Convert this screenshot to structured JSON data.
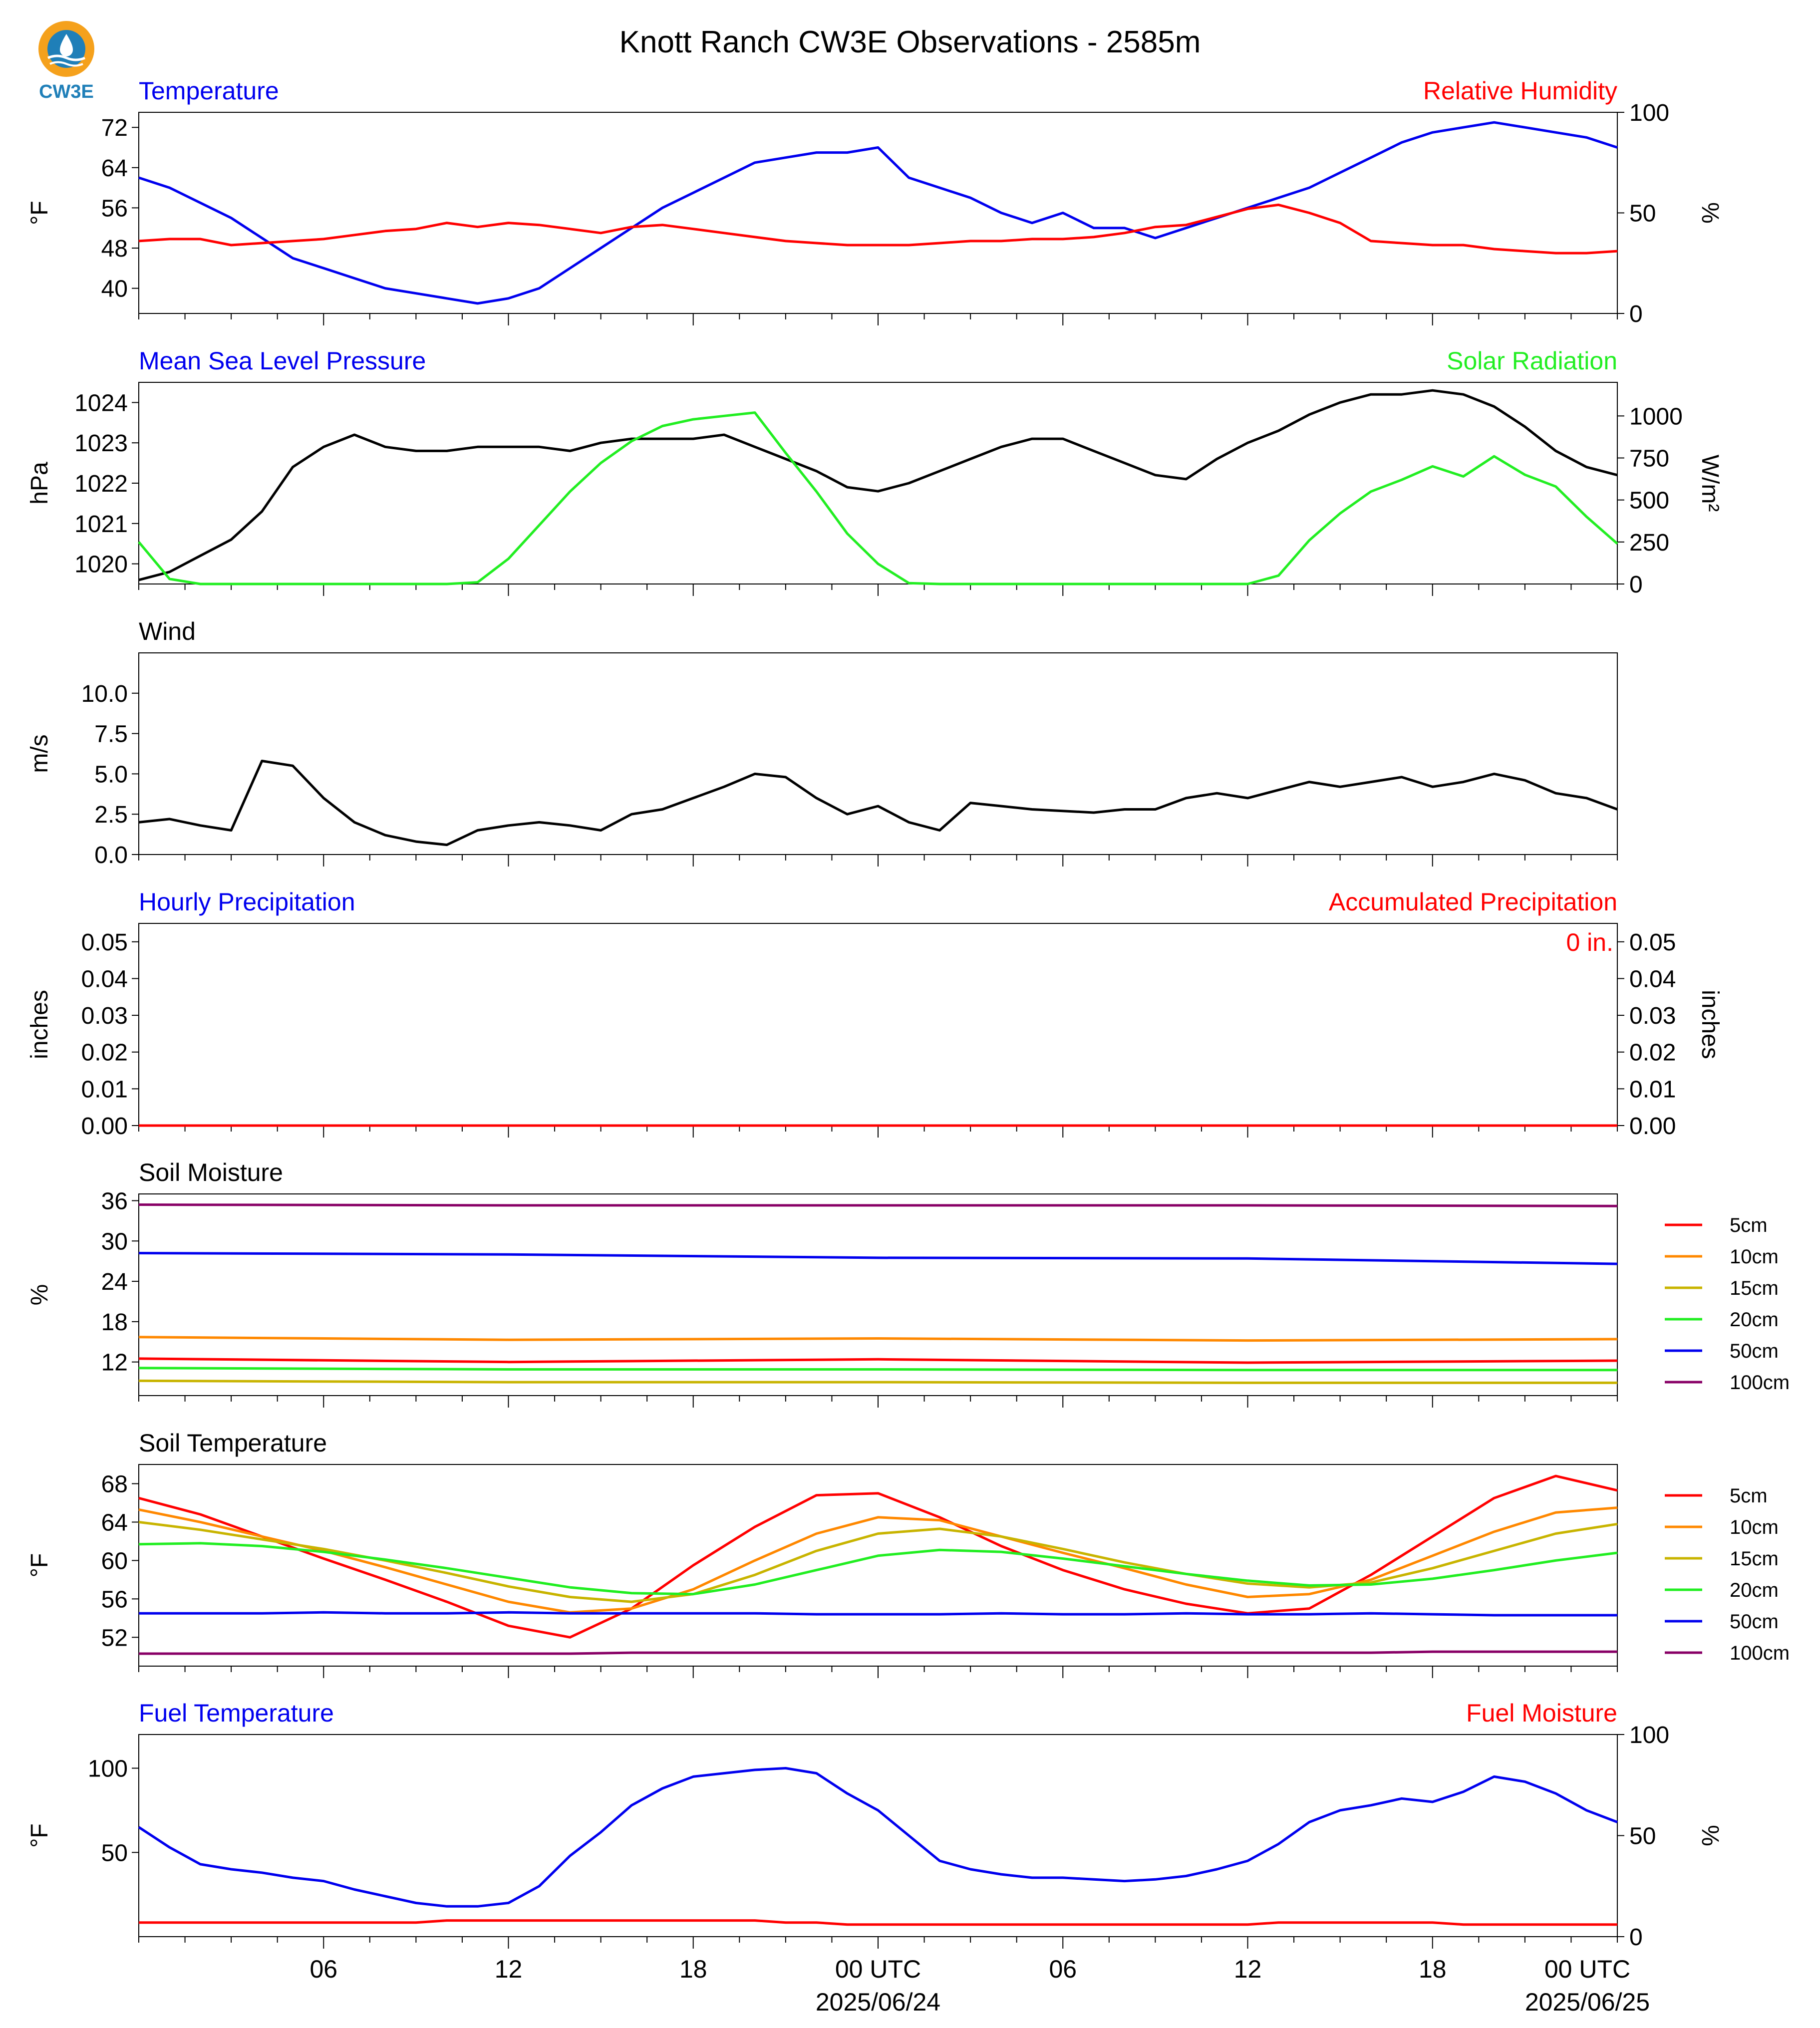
{
  "title": "Knott Ranch CW3E Observations - 2585m",
  "logo_text": "CW3E",
  "x_axis": {
    "tick_labels": [
      "06",
      "12",
      "18",
      "00 UTC",
      "06",
      "12",
      "18",
      "00 UTC"
    ],
    "date_labels": [
      "2025/06/24",
      "2025/06/25"
    ]
  },
  "colors": {
    "blue": "#0000ee",
    "red": "#ff0000",
    "green": "#22ee22",
    "black": "#000000",
    "orange": "#ff8800",
    "olive": "#c8b400",
    "purple": "#880066"
  },
  "chart_data": [
    {
      "type": "line",
      "left_title": "Temperature",
      "right_title": "Relative Humidity",
      "left_axis": {
        "label": "°F",
        "ticks": [
          "72",
          "64",
          "56",
          "48",
          "40"
        ],
        "range": [
          35,
          75
        ]
      },
      "right_axis": {
        "label": "%",
        "ticks": [
          "100",
          "50",
          "0"
        ],
        "range": [
          0,
          100
        ]
      },
      "x_hours": [
        0,
        1,
        2,
        3,
        4,
        5,
        6,
        7,
        8,
        9,
        10,
        11,
        12,
        13,
        14,
        15,
        16,
        17,
        18,
        19,
        20,
        21,
        22,
        23,
        24,
        25,
        26,
        27,
        28,
        29,
        30,
        31,
        32,
        33,
        34,
        35,
        36,
        37,
        38,
        39,
        40,
        41,
        42,
        43,
        44,
        45,
        46,
        47,
        48
      ],
      "series": [
        {
          "name": "Temperature",
          "axis": "left",
          "color": "blue",
          "values": [
            62,
            60,
            57,
            54,
            50,
            46,
            44,
            42,
            40,
            39,
            38,
            37,
            38,
            40,
            44,
            48,
            52,
            56,
            59,
            62,
            65,
            66,
            67,
            67,
            68,
            62,
            60,
            58,
            55,
            53,
            55,
            52,
            52,
            50,
            52,
            54,
            56,
            58,
            60,
            63,
            66,
            69,
            71,
            72,
            73,
            72,
            71,
            70,
            68
          ]
        },
        {
          "name": "Relative Humidity",
          "axis": "right",
          "color": "red",
          "values": [
            36,
            37,
            37,
            34,
            35,
            36,
            37,
            39,
            41,
            42,
            45,
            43,
            45,
            44,
            42,
            40,
            43,
            44,
            42,
            40,
            38,
            36,
            35,
            34,
            34,
            34,
            35,
            36,
            36,
            37,
            37,
            38,
            40,
            43,
            44,
            48,
            52,
            54,
            50,
            45,
            36,
            35,
            34,
            34,
            32,
            31,
            30,
            30,
            31
          ]
        }
      ]
    },
    {
      "type": "line",
      "left_title": "Mean Sea Level Pressure",
      "right_title": "Solar Radiation",
      "left_axis": {
        "label": "hPa",
        "ticks": [
          "1024",
          "1023",
          "1022",
          "1021",
          "1020"
        ],
        "range": [
          1019.5,
          1024.5
        ]
      },
      "right_axis": {
        "label": "W/m²",
        "ticks": [
          "1000",
          "750",
          "500",
          "250",
          "0"
        ],
        "range": [
          0,
          1200
        ]
      },
      "x_hours": [
        0,
        1,
        2,
        3,
        4,
        5,
        6,
        7,
        8,
        9,
        10,
        11,
        12,
        13,
        14,
        15,
        16,
        17,
        18,
        19,
        20,
        21,
        22,
        23,
        24,
        25,
        26,
        27,
        28,
        29,
        30,
        31,
        32,
        33,
        34,
        35,
        36,
        37,
        38,
        39,
        40,
        41,
        42,
        43,
        44,
        45,
        46,
        47,
        48
      ],
      "series": [
        {
          "name": "Mean Sea Level Pressure",
          "axis": "left",
          "color": "black",
          "values": [
            1019.6,
            1019.8,
            1020.2,
            1020.6,
            1021.3,
            1022.4,
            1022.9,
            1023.2,
            1022.9,
            1022.8,
            1022.8,
            1022.9,
            1022.9,
            1022.9,
            1022.8,
            1023.0,
            1023.1,
            1023.1,
            1023.1,
            1023.2,
            1022.9,
            1022.6,
            1022.3,
            1021.9,
            1021.8,
            1022.0,
            1022.3,
            1022.6,
            1022.9,
            1023.1,
            1023.1,
            1022.8,
            1022.5,
            1022.2,
            1022.1,
            1022.6,
            1023.0,
            1023.3,
            1023.7,
            1024.0,
            1024.2,
            1024.2,
            1024.3,
            1024.2,
            1023.9,
            1023.4,
            1022.8,
            1022.4,
            1022.2
          ]
        },
        {
          "name": "Solar Radiation",
          "axis": "right",
          "color": "green",
          "values": [
            250,
            30,
            0,
            0,
            0,
            0,
            0,
            0,
            0,
            0,
            0,
            10,
            150,
            350,
            550,
            720,
            850,
            940,
            980,
            1000,
            1020,
            780,
            550,
            300,
            120,
            5,
            0,
            0,
            0,
            0,
            0,
            0,
            0,
            0,
            0,
            0,
            0,
            50,
            260,
            420,
            550,
            620,
            700,
            640,
            760,
            650,
            580,
            400,
            240
          ]
        }
      ]
    },
    {
      "type": "line",
      "left_title": "Wind",
      "left_axis": {
        "label": "m/s",
        "ticks": [
          "10.0",
          "7.5",
          "5.0",
          "2.5",
          "0.0"
        ],
        "range": [
          0,
          12.5
        ]
      },
      "x_hours": [
        0,
        1,
        2,
        3,
        4,
        5,
        6,
        7,
        8,
        9,
        10,
        11,
        12,
        13,
        14,
        15,
        16,
        17,
        18,
        19,
        20,
        21,
        22,
        23,
        24,
        25,
        26,
        27,
        28,
        29,
        30,
        31,
        32,
        33,
        34,
        35,
        36,
        37,
        38,
        39,
        40,
        41,
        42,
        43,
        44,
        45,
        46,
        47,
        48
      ],
      "series": [
        {
          "name": "Wind",
          "axis": "left",
          "color": "black",
          "values": [
            2.0,
            2.2,
            1.8,
            1.5,
            5.8,
            5.5,
            3.5,
            2.0,
            1.2,
            0.8,
            0.6,
            1.5,
            1.8,
            2.0,
            1.8,
            1.5,
            2.5,
            2.8,
            3.5,
            4.2,
            5.0,
            4.8,
            3.5,
            2.5,
            3.0,
            2.0,
            1.5,
            3.2,
            3.0,
            2.8,
            2.7,
            2.6,
            2.8,
            2.8,
            3.5,
            3.8,
            3.5,
            4.0,
            4.5,
            4.2,
            4.5,
            4.8,
            4.2,
            4.5,
            5.0,
            4.6,
            3.8,
            3.5,
            2.8
          ]
        }
      ]
    },
    {
      "type": "line",
      "left_title": "Hourly Precipitation",
      "right_title": "Accumulated Precipitation",
      "annotation": "0 in.",
      "left_axis": {
        "label": "inches",
        "ticks": [
          "0.05",
          "0.04",
          "0.03",
          "0.02",
          "0.01",
          "0.00"
        ],
        "range": [
          0,
          0.055
        ]
      },
      "right_axis": {
        "label": "inches",
        "ticks": [
          "0.05",
          "0.04",
          "0.03",
          "0.02",
          "0.01",
          "0.00"
        ],
        "range": [
          0,
          0.055
        ]
      },
      "x_hours": [
        0,
        48
      ],
      "series": [
        {
          "name": "Hourly Precipitation",
          "axis": "left",
          "color": "blue",
          "values": [
            0,
            0
          ]
        },
        {
          "name": "Accumulated Precipitation",
          "axis": "right",
          "color": "red",
          "values": [
            0,
            0
          ]
        }
      ]
    },
    {
      "type": "line",
      "left_title": "Soil Moisture",
      "left_axis": {
        "label": "%",
        "ticks": [
          "36",
          "30",
          "24",
          "18",
          "12"
        ],
        "range": [
          7,
          37
        ]
      },
      "legend": {
        "placement": "right",
        "entries": [
          "5cm",
          "10cm",
          "15cm",
          "20cm",
          "50cm",
          "100cm"
        ]
      },
      "x_hours": [
        0,
        12,
        24,
        36,
        48
      ],
      "series": [
        {
          "name": "5cm",
          "axis": "left",
          "color": "red",
          "values": [
            12.5,
            12.0,
            12.4,
            11.9,
            12.2
          ]
        },
        {
          "name": "10cm",
          "axis": "left",
          "color": "orange",
          "values": [
            15.7,
            15.3,
            15.5,
            15.2,
            15.4
          ]
        },
        {
          "name": "15cm",
          "axis": "left",
          "color": "olive",
          "values": [
            9.2,
            9.0,
            9.0,
            8.9,
            8.9
          ]
        },
        {
          "name": "20cm",
          "axis": "left",
          "color": "green",
          "values": [
            11.1,
            10.9,
            10.9,
            10.8,
            10.8
          ]
        },
        {
          "name": "50cm",
          "axis": "left",
          "color": "blue",
          "values": [
            28.2,
            28.0,
            27.5,
            27.4,
            26.6
          ]
        },
        {
          "name": "100cm",
          "axis": "left",
          "color": "purple",
          "values": [
            35.4,
            35.3,
            35.3,
            35.3,
            35.2
          ]
        }
      ]
    },
    {
      "type": "line",
      "left_title": "Soil Temperature",
      "left_axis": {
        "label": "°F",
        "ticks": [
          "68",
          "64",
          "60",
          "56",
          "52"
        ],
        "range": [
          49,
          70
        ]
      },
      "legend": {
        "placement": "right",
        "entries": [
          "5cm",
          "10cm",
          "15cm",
          "20cm",
          "50cm",
          "100cm"
        ]
      },
      "x_hours": [
        0,
        2,
        4,
        6,
        8,
        10,
        12,
        14,
        16,
        18,
        20,
        22,
        24,
        26,
        28,
        30,
        32,
        34,
        36,
        38,
        40,
        42,
        44,
        46,
        48
      ],
      "series": [
        {
          "name": "5cm",
          "axis": "left",
          "color": "red",
          "values": [
            66.5,
            64.8,
            62.5,
            60.2,
            58.0,
            55.7,
            53.2,
            52.0,
            55.0,
            59.5,
            63.5,
            66.8,
            67.0,
            64.5,
            61.5,
            59.0,
            57.0,
            55.5,
            54.5,
            55.0,
            58.5,
            62.5,
            66.5,
            68.8,
            67.3
          ]
        },
        {
          "name": "10cm",
          "axis": "left",
          "color": "orange",
          "values": [
            65.3,
            64.0,
            62.5,
            61.0,
            59.3,
            57.5,
            55.7,
            54.6,
            55.0,
            57.0,
            60.0,
            62.8,
            64.5,
            64.2,
            62.5,
            60.8,
            59.2,
            57.5,
            56.2,
            56.5,
            58.0,
            60.5,
            63.0,
            65.0,
            65.5
          ]
        },
        {
          "name": "15cm",
          "axis": "left",
          "color": "olive",
          "values": [
            64.0,
            63.2,
            62.2,
            61.2,
            60.0,
            58.7,
            57.3,
            56.2,
            55.7,
            56.5,
            58.5,
            61.0,
            62.8,
            63.3,
            62.5,
            61.2,
            59.8,
            58.6,
            57.6,
            57.2,
            57.7,
            59.2,
            61.0,
            62.8,
            63.8
          ]
        },
        {
          "name": "20cm",
          "axis": "left",
          "color": "green",
          "values": [
            61.7,
            61.8,
            61.5,
            60.9,
            60.1,
            59.2,
            58.2,
            57.2,
            56.6,
            56.5,
            57.5,
            59.0,
            60.5,
            61.1,
            60.9,
            60.2,
            59.4,
            58.6,
            57.9,
            57.4,
            57.5,
            58.1,
            59.0,
            60.0,
            60.8
          ]
        },
        {
          "name": "50cm",
          "axis": "left",
          "color": "blue",
          "values": [
            54.5,
            54.5,
            54.5,
            54.6,
            54.5,
            54.5,
            54.6,
            54.5,
            54.5,
            54.5,
            54.5,
            54.4,
            54.4,
            54.4,
            54.5,
            54.4,
            54.4,
            54.5,
            54.4,
            54.4,
            54.5,
            54.4,
            54.3,
            54.3,
            54.3
          ]
        },
        {
          "name": "100cm",
          "axis": "left",
          "color": "purple",
          "values": [
            50.3,
            50.3,
            50.3,
            50.3,
            50.3,
            50.3,
            50.3,
            50.3,
            50.4,
            50.4,
            50.4,
            50.4,
            50.4,
            50.4,
            50.4,
            50.4,
            50.4,
            50.4,
            50.4,
            50.4,
            50.4,
            50.5,
            50.5,
            50.5,
            50.5
          ]
        }
      ]
    },
    {
      "type": "line",
      "left_title": "Fuel Temperature",
      "right_title": "Fuel Moisture",
      "left_axis": {
        "label": "°F",
        "ticks": [
          "100",
          "50"
        ],
        "range": [
          0,
          120
        ]
      },
      "right_axis": {
        "label": "%",
        "ticks": [
          "100",
          "50",
          "0"
        ],
        "range": [
          0,
          100
        ]
      },
      "x_hours": [
        0,
        1,
        2,
        3,
        4,
        5,
        6,
        7,
        8,
        9,
        10,
        11,
        12,
        13,
        14,
        15,
        16,
        17,
        18,
        19,
        20,
        21,
        22,
        23,
        24,
        25,
        26,
        27,
        28,
        29,
        30,
        31,
        32,
        33,
        34,
        35,
        36,
        37,
        38,
        39,
        40,
        41,
        42,
        43,
        44,
        45,
        46,
        47,
        48
      ],
      "series": [
        {
          "name": "Fuel Temperature",
          "axis": "left",
          "color": "blue",
          "values": [
            65,
            53,
            43,
            40,
            38,
            35,
            33,
            28,
            24,
            20,
            18,
            18,
            20,
            30,
            48,
            62,
            78,
            88,
            95,
            97,
            99,
            100,
            97,
            85,
            75,
            60,
            45,
            40,
            37,
            35,
            35,
            34,
            33,
            34,
            36,
            40,
            45,
            55,
            68,
            75,
            78,
            82,
            80,
            86,
            95,
            92,
            85,
            75,
            68
          ]
        },
        {
          "name": "Fuel Moisture",
          "axis": "right",
          "color": "red",
          "values": [
            7,
            7,
            7,
            7,
            7,
            7,
            7,
            7,
            7,
            7,
            8,
            8,
            8,
            8,
            8,
            8,
            8,
            8,
            8,
            8,
            8,
            7,
            7,
            6,
            6,
            6,
            6,
            6,
            6,
            6,
            6,
            6,
            6,
            6,
            6,
            6,
            6,
            7,
            7,
            7,
            7,
            7,
            7,
            6,
            6,
            6,
            6,
            6,
            6
          ]
        }
      ]
    }
  ]
}
